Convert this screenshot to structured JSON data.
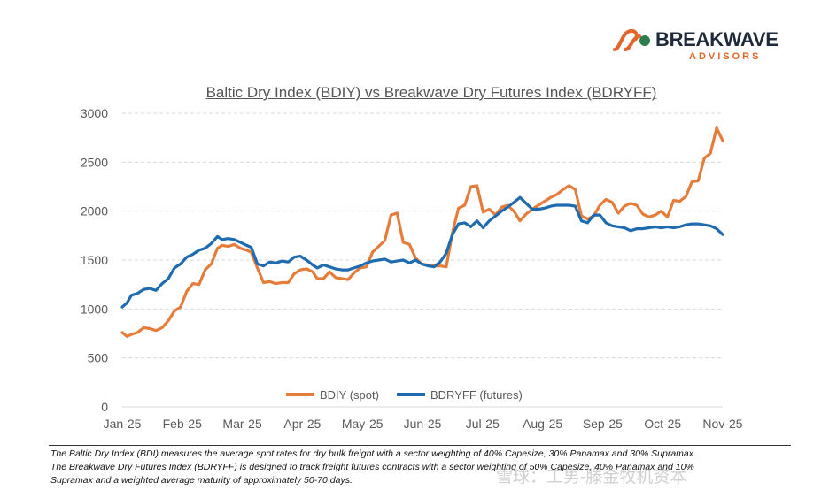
{
  "logo": {
    "name": "BREAKWAVE",
    "subtitle": "ADVISORS",
    "colors": {
      "accent": "#e1662b",
      "text": "#1f2a3a"
    }
  },
  "chart_data": {
    "type": "line",
    "title": "Baltic Dry Index (BDIY) vs Breakwave Dry Futures Index (BDRYFF)",
    "xlabel": "",
    "ylabel": "",
    "x_tick_labels": [
      "Jan-25",
      "Feb-25",
      "Mar-25",
      "Apr-25",
      "May-25",
      "Jun-25",
      "Jul-25",
      "Aug-25",
      "Sep-25",
      "Oct-25",
      "Nov-25"
    ],
    "y_ticks": [
      0,
      500,
      1000,
      1500,
      2000,
      2500,
      3000
    ],
    "ylim": [
      0,
      3000
    ],
    "x_range_days": [
      0,
      322
    ],
    "grid": "horizontal dashed",
    "legend": "bottom-center",
    "series": [
      {
        "name": "BDIY (spot)",
        "color": "#e57c3a",
        "points": [
          [
            0,
            760
          ],
          [
            3,
            720
          ],
          [
            6,
            740
          ],
          [
            10,
            760
          ],
          [
            14,
            810
          ],
          [
            18,
            800
          ],
          [
            22,
            780
          ],
          [
            26,
            810
          ],
          [
            30,
            880
          ],
          [
            34,
            980
          ],
          [
            38,
            1020
          ],
          [
            42,
            1180
          ],
          [
            46,
            1260
          ],
          [
            50,
            1250
          ],
          [
            54,
            1400
          ],
          [
            58,
            1460
          ],
          [
            62,
            1620
          ],
          [
            65,
            1650
          ],
          [
            69,
            1640
          ],
          [
            73,
            1660
          ],
          [
            77,
            1620
          ],
          [
            81,
            1600
          ],
          [
            84,
            1580
          ],
          [
            88,
            1420
          ],
          [
            92,
            1270
          ],
          [
            96,
            1280
          ],
          [
            100,
            1260
          ],
          [
            104,
            1270
          ],
          [
            108,
            1270
          ],
          [
            112,
            1360
          ],
          [
            116,
            1400
          ],
          [
            120,
            1410
          ],
          [
            124,
            1380
          ],
          [
            127,
            1310
          ],
          [
            131,
            1310
          ],
          [
            135,
            1380
          ],
          [
            139,
            1320
          ],
          [
            143,
            1310
          ],
          [
            147,
            1300
          ],
          [
            151,
            1370
          ],
          [
            155,
            1420
          ],
          [
            159,
            1430
          ],
          [
            163,
            1580
          ],
          [
            167,
            1640
          ],
          [
            171,
            1700
          ],
          [
            175,
            1960
          ],
          [
            179,
            1980
          ],
          [
            183,
            1680
          ],
          [
            187,
            1660
          ],
          [
            191,
            1520
          ],
          [
            195,
            1460
          ],
          [
            199,
            1450
          ],
          [
            203,
            1440
          ],
          [
            207,
            1440
          ],
          [
            211,
            1430
          ],
          [
            215,
            1780
          ],
          [
            219,
            2030
          ],
          [
            223,
            2060
          ],
          [
            227,
            2250
          ],
          [
            231,
            2260
          ],
          [
            235,
            1990
          ],
          [
            239,
            2020
          ],
          [
            243,
            1960
          ],
          [
            247,
            2040
          ],
          [
            251,
            2060
          ],
          [
            255,
            2000
          ],
          [
            259,
            1900
          ],
          [
            263,
            1970
          ],
          [
            267,
            2020
          ],
          [
            271,
            2060
          ],
          [
            275,
            2100
          ],
          [
            279,
            2140
          ],
          [
            283,
            2170
          ],
          [
            287,
            2220
          ],
          [
            291,
            2260
          ],
          [
            295,
            2220
          ],
          [
            299,
            1950
          ],
          [
            303,
            1920
          ],
          [
            307,
            1950
          ],
          [
            311,
            2060
          ],
          [
            315,
            2120
          ],
          [
            319,
            2090
          ],
          [
            323,
            1980
          ],
          [
            327,
            2050
          ],
          [
            331,
            2080
          ],
          [
            335,
            2060
          ],
          [
            339,
            1970
          ],
          [
            343,
            1940
          ],
          [
            347,
            1960
          ],
          [
            351,
            2000
          ],
          [
            355,
            1940
          ],
          [
            359,
            2110
          ],
          [
            363,
            2100
          ],
          [
            367,
            2150
          ],
          [
            371,
            2300
          ],
          [
            375,
            2310
          ],
          [
            379,
            2540
          ],
          [
            383,
            2590
          ],
          [
            387,
            2850
          ],
          [
            391,
            2720
          ]
        ]
      },
      {
        "name": "BDRYFF (futures)",
        "color": "#1f6bb0",
        "points": [
          [
            0,
            1020
          ],
          [
            3,
            1060
          ],
          [
            6,
            1140
          ],
          [
            10,
            1160
          ],
          [
            14,
            1200
          ],
          [
            18,
            1210
          ],
          [
            22,
            1190
          ],
          [
            26,
            1260
          ],
          [
            30,
            1310
          ],
          [
            34,
            1420
          ],
          [
            38,
            1460
          ],
          [
            42,
            1530
          ],
          [
            46,
            1560
          ],
          [
            50,
            1600
          ],
          [
            54,
            1620
          ],
          [
            58,
            1670
          ],
          [
            62,
            1740
          ],
          [
            65,
            1710
          ],
          [
            69,
            1720
          ],
          [
            73,
            1710
          ],
          [
            77,
            1680
          ],
          [
            81,
            1650
          ],
          [
            84,
            1630
          ],
          [
            88,
            1460
          ],
          [
            92,
            1440
          ],
          [
            96,
            1480
          ],
          [
            100,
            1470
          ],
          [
            104,
            1490
          ],
          [
            108,
            1480
          ],
          [
            112,
            1530
          ],
          [
            116,
            1540
          ],
          [
            120,
            1500
          ],
          [
            124,
            1450
          ],
          [
            127,
            1420
          ],
          [
            131,
            1450
          ],
          [
            135,
            1430
          ],
          [
            139,
            1410
          ],
          [
            143,
            1400
          ],
          [
            147,
            1400
          ],
          [
            151,
            1420
          ],
          [
            155,
            1440
          ],
          [
            159,
            1470
          ],
          [
            163,
            1490
          ],
          [
            167,
            1500
          ],
          [
            171,
            1510
          ],
          [
            175,
            1480
          ],
          [
            179,
            1490
          ],
          [
            183,
            1500
          ],
          [
            187,
            1470
          ],
          [
            191,
            1500
          ],
          [
            195,
            1460
          ],
          [
            199,
            1440
          ],
          [
            203,
            1430
          ],
          [
            207,
            1480
          ],
          [
            211,
            1570
          ],
          [
            215,
            1760
          ],
          [
            219,
            1870
          ],
          [
            223,
            1880
          ],
          [
            227,
            1840
          ],
          [
            231,
            1900
          ],
          [
            235,
            1830
          ],
          [
            239,
            1900
          ],
          [
            243,
            1950
          ],
          [
            247,
            2000
          ],
          [
            251,
            2040
          ],
          [
            255,
            2090
          ],
          [
            259,
            2140
          ],
          [
            263,
            2080
          ],
          [
            267,
            2020
          ],
          [
            271,
            2020
          ],
          [
            275,
            2030
          ],
          [
            279,
            2050
          ],
          [
            283,
            2060
          ],
          [
            287,
            2060
          ],
          [
            291,
            2060
          ],
          [
            295,
            2050
          ],
          [
            299,
            1900
          ],
          [
            303,
            1880
          ],
          [
            307,
            1960
          ],
          [
            311,
            1960
          ],
          [
            315,
            1880
          ],
          [
            319,
            1850
          ],
          [
            323,
            1840
          ],
          [
            327,
            1830
          ],
          [
            331,
            1800
          ],
          [
            335,
            1820
          ],
          [
            339,
            1820
          ],
          [
            343,
            1830
          ],
          [
            347,
            1840
          ],
          [
            351,
            1830
          ],
          [
            355,
            1840
          ],
          [
            359,
            1830
          ],
          [
            363,
            1840
          ],
          [
            367,
            1860
          ],
          [
            371,
            1870
          ],
          [
            375,
            1870
          ],
          [
            379,
            1860
          ],
          [
            383,
            1850
          ],
          [
            387,
            1820
          ],
          [
            391,
            1760
          ]
        ]
      }
    ]
  },
  "footnote": {
    "line1": "The Baltic Dry Index (BDI) measures the average spot rates for dry bulk freight with a sector weighting of 40% Capesize, 30% Panamax and 30% Supramax.",
    "line2": "The Breakwave Dry Futures Index (BDRYFF) is designed to track freight futures contracts with a sector weighting of 50% Capesize, 40% Panamax and 10%",
    "line3": "Supramax and a weighted average maturity of approximately 50-70 days."
  },
  "watermark": "雪球：工男-滕金牧机资本"
}
